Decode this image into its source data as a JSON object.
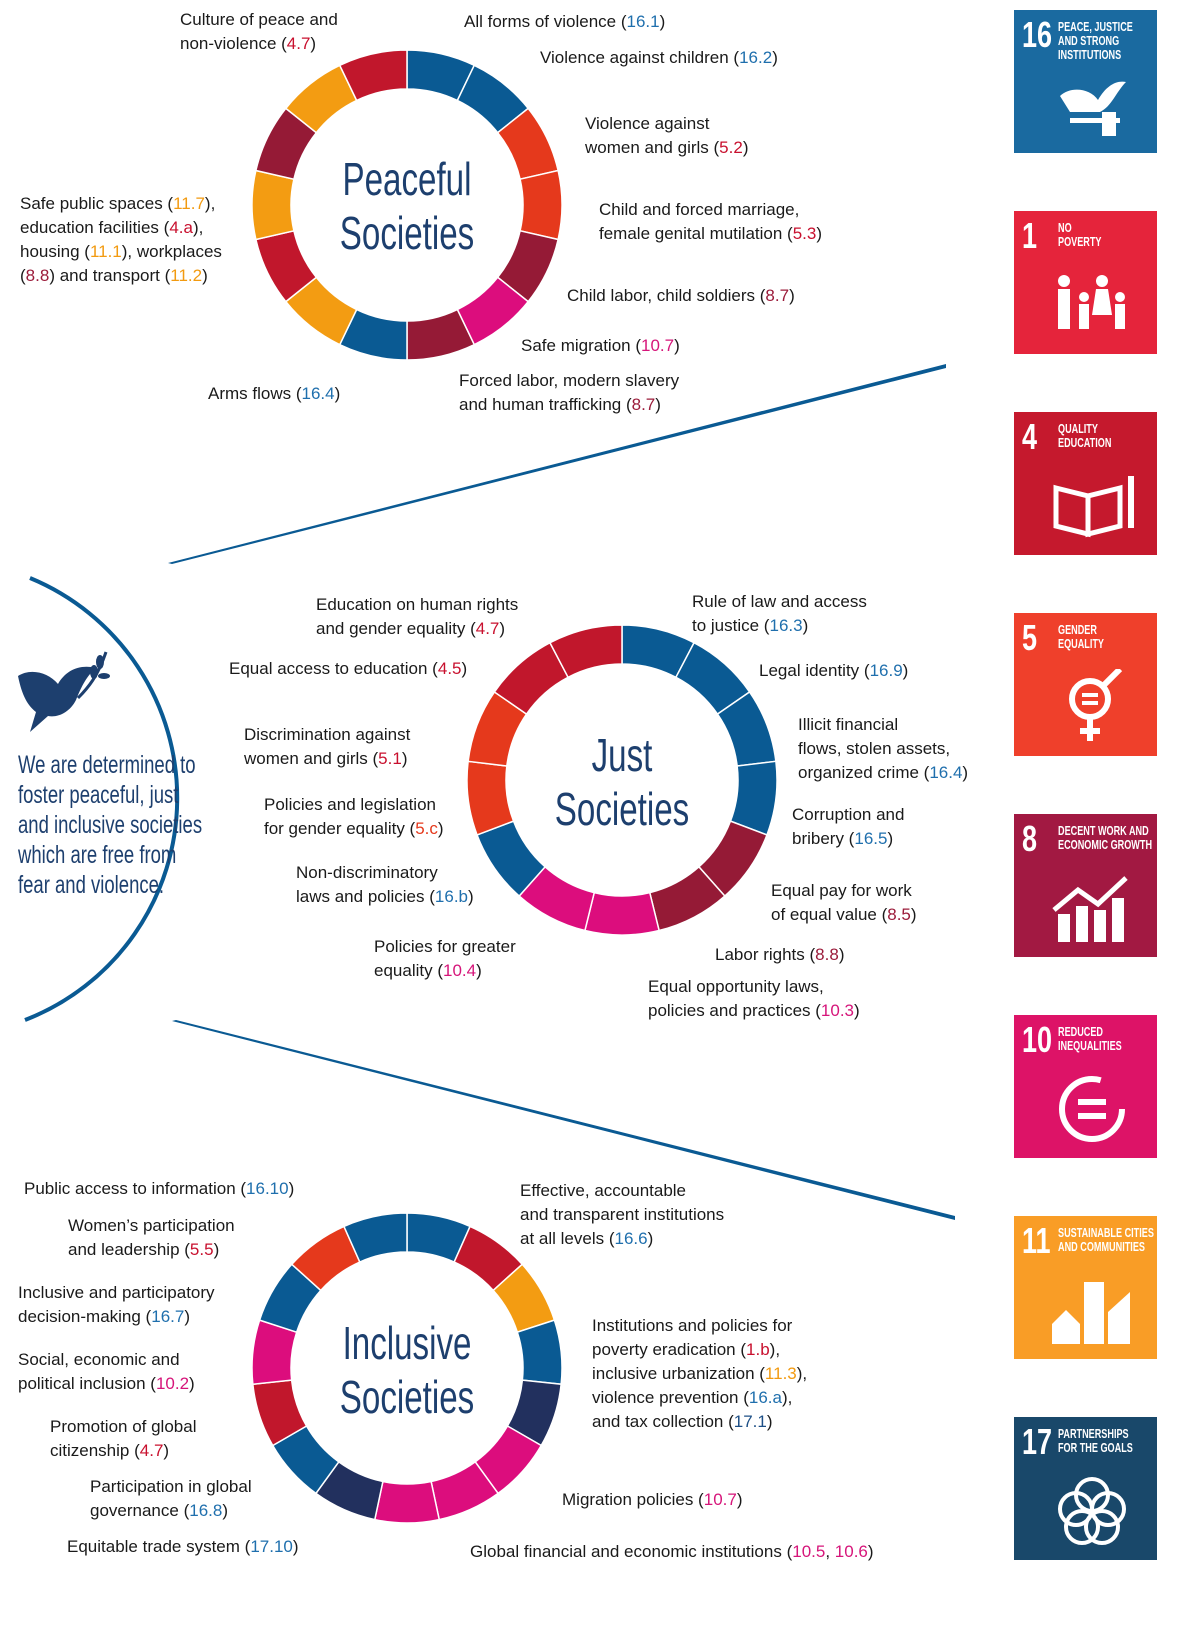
{
  "colors": {
    "blue": "#0a5a93",
    "red": "#c1172c",
    "orange": "#e5391c",
    "darkred": "#951a36",
    "magenta": "#dc0d7d",
    "amber": "#f39c12",
    "navy": "#22305e",
    "title": "#1d3f6e",
    "code_blue": "#1f6fad",
    "code_red": "#c8102e",
    "code_darkred": "#9b1b3a",
    "code_magenta": "#d6157a",
    "code_amber": "#f29a10",
    "code_orange": "#e5391c",
    "code_navy": "#1d4f86"
  },
  "donuts": [
    {
      "title_line1": "Peaceful",
      "title_line2": "Societies",
      "segments": [
        "blue",
        "blue",
        "orange",
        "orange",
        "darkred",
        "magenta",
        "darkred",
        "blue",
        "amber",
        "red",
        "amber",
        "darkred",
        "amber",
        "red"
      ]
    },
    {
      "title_line1": "Just",
      "title_line2": "Societies",
      "segments": [
        "blue",
        "blue",
        "blue",
        "blue",
        "darkred",
        "darkred",
        "magenta",
        "magenta",
        "blue",
        "orange",
        "orange",
        "red",
        "red"
      ]
    },
    {
      "title_line1": "Inclusive",
      "title_line2": "Societies",
      "segments": [
        "blue",
        "red",
        "amber",
        "blue",
        "navy",
        "magenta",
        "magenta",
        "magenta",
        "navy",
        "blue",
        "red",
        "magenta",
        "blue",
        "orange",
        "blue"
      ]
    }
  ],
  "labels": [
    {
      "parts": [
        [
          "Culture of peace and\nnon-violence (",
          ""
        ],
        [
          "4.7",
          "code_red"
        ],
        [
          ")",
          ""
        ]
      ]
    },
    {
      "parts": [
        [
          "All forms of violence (",
          ""
        ],
        [
          "16.1",
          "code_blue"
        ],
        [
          ")",
          ""
        ]
      ]
    },
    {
      "parts": [
        [
          "Violence against children (",
          ""
        ],
        [
          "16.2",
          "code_blue"
        ],
        [
          ")",
          ""
        ]
      ]
    },
    {
      "parts": [
        [
          "Violence against\nwomen and girls (",
          ""
        ],
        [
          "5.2",
          "code_red"
        ],
        [
          ")",
          ""
        ]
      ]
    },
    {
      "parts": [
        [
          "Child and forced marriage,\nfemale genital mutilation (",
          ""
        ],
        [
          "5.3",
          "code_red"
        ],
        [
          ")",
          ""
        ]
      ]
    },
    {
      "parts": [
        [
          "Child labor, child soldiers (",
          ""
        ],
        [
          "8.7",
          "code_darkred"
        ],
        [
          ")",
          ""
        ]
      ]
    },
    {
      "parts": [
        [
          "Safe migration (",
          ""
        ],
        [
          "10.7",
          "code_magenta"
        ],
        [
          ")",
          ""
        ]
      ]
    },
    {
      "parts": [
        [
          "Forced labor, modern slavery\nand human trafficking (",
          ""
        ],
        [
          "8.7",
          "code_darkred"
        ],
        [
          ")",
          ""
        ]
      ]
    },
    {
      "parts": [
        [
          "Arms flows (",
          ""
        ],
        [
          "16.4",
          "code_blue"
        ],
        [
          ")",
          ""
        ]
      ]
    },
    {
      "parts": [
        [
          "Safe public spaces (",
          ""
        ],
        [
          "11.7",
          "code_amber"
        ],
        [
          "),\neducation facilities (",
          ""
        ],
        [
          "4.a",
          "code_red"
        ],
        [
          "),\nhousing (",
          ""
        ],
        [
          "11.1",
          "code_amber"
        ],
        [
          "), workplaces\n(",
          ""
        ],
        [
          "8.8",
          "code_darkred"
        ],
        [
          ") and transport (",
          ""
        ],
        [
          "11.2",
          "code_amber"
        ],
        [
          ")",
          ""
        ]
      ]
    },
    {
      "parts": [
        [
          "Education on human rights\nand gender equality (",
          ""
        ],
        [
          "4.7",
          "code_red"
        ],
        [
          ")",
          ""
        ]
      ]
    },
    {
      "parts": [
        [
          "Rule of law and access\nto justice (",
          ""
        ],
        [
          "16.3",
          "code_blue"
        ],
        [
          ")",
          ""
        ]
      ]
    },
    {
      "parts": [
        [
          "Equal access to education (",
          ""
        ],
        [
          "4.5",
          "code_red"
        ],
        [
          ")",
          ""
        ]
      ]
    },
    {
      "parts": [
        [
          "Legal identity (",
          ""
        ],
        [
          "16.9",
          "code_blue"
        ],
        [
          ")",
          ""
        ]
      ]
    },
    {
      "parts": [
        [
          "Illicit financial\nflows, stolen assets,\norganized crime (",
          ""
        ],
        [
          "16.4",
          "code_blue"
        ],
        [
          ")",
          ""
        ]
      ]
    },
    {
      "parts": [
        [
          "Discrimination against\nwomen and girls (",
          ""
        ],
        [
          "5.1",
          "code_red"
        ],
        [
          ")",
          ""
        ]
      ]
    },
    {
      "parts": [
        [
          "Policies and legislation\nfor gender equality (",
          ""
        ],
        [
          "5.c",
          "code_orange"
        ],
        [
          ")",
          ""
        ]
      ]
    },
    {
      "parts": [
        [
          "Corruption and\nbribery (",
          ""
        ],
        [
          "16.5",
          "code_blue"
        ],
        [
          ")",
          ""
        ]
      ]
    },
    {
      "parts": [
        [
          "Non-discriminatory\nlaws and policies (",
          ""
        ],
        [
          "16.b",
          "code_blue"
        ],
        [
          ")",
          ""
        ]
      ]
    },
    {
      "parts": [
        [
          "Equal pay for work\nof equal value (",
          ""
        ],
        [
          "8.5",
          "code_darkred"
        ],
        [
          ")",
          ""
        ]
      ]
    },
    {
      "parts": [
        [
          "Policies for greater\nequality (",
          ""
        ],
        [
          "10.4",
          "code_magenta"
        ],
        [
          ")",
          ""
        ]
      ]
    },
    {
      "parts": [
        [
          "Labor rights (",
          ""
        ],
        [
          "8.8",
          "code_darkred"
        ],
        [
          ")",
          ""
        ]
      ]
    },
    {
      "parts": [
        [
          "Equal opportunity laws,\npolicies and practices (",
          ""
        ],
        [
          "10.3",
          "code_magenta"
        ],
        [
          ")",
          ""
        ]
      ]
    },
    {
      "parts": [
        [
          "Public access to information (",
          ""
        ],
        [
          "16.10",
          "code_blue"
        ],
        [
          ")",
          ""
        ]
      ]
    },
    {
      "parts": [
        [
          "Effective, accountable\nand transparent institutions\nat all levels (",
          ""
        ],
        [
          "16.6",
          "code_blue"
        ],
        [
          ")",
          ""
        ]
      ]
    },
    {
      "parts": [
        [
          "Women’s participation\nand leadership (",
          ""
        ],
        [
          "5.5",
          "code_red"
        ],
        [
          ")",
          ""
        ]
      ]
    },
    {
      "parts": [
        [
          "Inclusive and participatory\ndecision-making (",
          ""
        ],
        [
          "16.7",
          "code_blue"
        ],
        [
          ")",
          ""
        ]
      ]
    },
    {
      "parts": [
        [
          "Institutions and policies for\npoverty eradication (",
          ""
        ],
        [
          "1.b",
          "code_red"
        ],
        [
          "),\ninclusive urbanization (",
          ""
        ],
        [
          "11.3",
          "code_amber"
        ],
        [
          "),\nviolence prevention (",
          ""
        ],
        [
          "16.a",
          "code_blue"
        ],
        [
          "),\nand tax collection (",
          ""
        ],
        [
          "17.1",
          "code_navy"
        ],
        [
          ")",
          ""
        ]
      ]
    },
    {
      "parts": [
        [
          "Social, economic and\npolitical inclusion (",
          ""
        ],
        [
          "10.2",
          "code_magenta"
        ],
        [
          ")",
          ""
        ]
      ]
    },
    {
      "parts": [
        [
          "Promotion of global\ncitizenship (",
          ""
        ],
        [
          "4.7",
          "code_red"
        ],
        [
          ")",
          ""
        ]
      ]
    },
    {
      "parts": [
        [
          "Participation in global\ngovernance (",
          ""
        ],
        [
          "16.8",
          "code_blue"
        ],
        [
          ")",
          ""
        ]
      ]
    },
    {
      "parts": [
        [
          "Migration policies (",
          ""
        ],
        [
          "10.7",
          "code_magenta"
        ],
        [
          ")",
          ""
        ]
      ]
    },
    {
      "parts": [
        [
          "Equitable trade system (",
          ""
        ],
        [
          "17.10",
          "code_blue"
        ],
        [
          ")",
          ""
        ]
      ]
    },
    {
      "parts": [
        [
          "Global financial and economic institutions (",
          ""
        ],
        [
          "10.5",
          "code_magenta"
        ],
        [
          ", ",
          ""
        ],
        [
          "10.6",
          "code_magenta"
        ],
        [
          ")",
          ""
        ]
      ]
    }
  ],
  "motto": "We are determined to\nfoster peaceful, just\nand inclusive societies\nwhich are free from\nfear and violence.",
  "sdg_tiles": [
    {
      "number": "16",
      "name": "PEACE, JUSTICE\nAND STRONG\nINSTITUTIONS",
      "color": "#1a6aa0",
      "icon": "dove-gavel-icon"
    },
    {
      "number": "1",
      "name": "NO\nPOVERTY",
      "color": "#e5243b",
      "icon": "family-icon"
    },
    {
      "number": "4",
      "name": "QUALITY\nEDUCATION",
      "color": "#c5192d",
      "icon": "book-pencil-icon"
    },
    {
      "number": "5",
      "name": "GENDER\nEQUALITY",
      "color": "#ef402b",
      "icon": "gender-equality-icon"
    },
    {
      "number": "8",
      "name": "DECENT WORK AND\nECONOMIC GROWTH",
      "color": "#a21942",
      "icon": "growth-chart-icon"
    },
    {
      "number": "10",
      "name": "REDUCED\nINEQUALITIES",
      "color": "#dd1367",
      "icon": "equal-circle-icon"
    },
    {
      "number": "11",
      "name": "SUSTAINABLE CITIES\nAND COMMUNITIES",
      "color": "#f99d26",
      "icon": "city-icon"
    },
    {
      "number": "17",
      "name": "PARTNERSHIPS\nFOR THE GOALS",
      "color": "#19486a",
      "icon": "rings-icon"
    }
  ]
}
